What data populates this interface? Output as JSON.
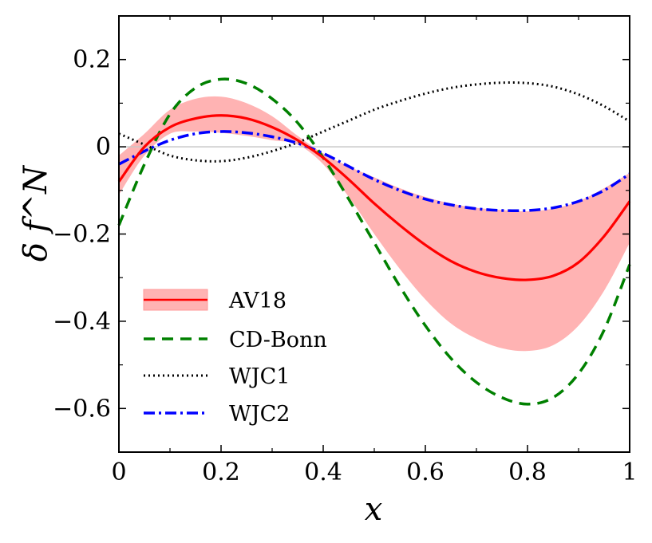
{
  "chart_data": {
    "type": "line",
    "title": "",
    "xlabel": "x",
    "ylabel": "δ f^N",
    "xlim": [
      0,
      1
    ],
    "ylim": [
      -0.7,
      0.3
    ],
    "x_ticks": [
      0,
      0.2,
      0.4,
      0.6,
      0.8,
      1
    ],
    "x_tick_labels": [
      "0",
      "0.2",
      "0.4",
      "0.6",
      "0.8",
      "1"
    ],
    "y_ticks": [
      0.2,
      0,
      -0.2,
      -0.4,
      -0.6
    ],
    "y_tick_labels": [
      "0.2",
      "0",
      "−0.2",
      "−0.4",
      "−0.6"
    ],
    "x": [
      0,
      0.05,
      0.1,
      0.15,
      0.2,
      0.25,
      0.3,
      0.35,
      0.4,
      0.45,
      0.5,
      0.55,
      0.6,
      0.65,
      0.7,
      0.75,
      0.8,
      0.85,
      0.9,
      0.95,
      1
    ],
    "legend_position": "lower-left",
    "series": [
      {
        "name": "AV18",
        "style": "solid",
        "color": "#ff0000",
        "band_color": "#ffb3b3",
        "values": [
          -0.08,
          0.0,
          0.045,
          0.065,
          0.072,
          0.065,
          0.045,
          0.015,
          -0.025,
          -0.075,
          -0.13,
          -0.18,
          -0.225,
          -0.262,
          -0.287,
          -0.301,
          -0.305,
          -0.296,
          -0.265,
          -0.205,
          -0.125
        ],
        "band_upper": [
          -0.02,
          0.03,
          0.085,
          0.11,
          0.115,
          0.1,
          0.07,
          0.025,
          -0.015,
          -0.045,
          -0.07,
          -0.095,
          -0.115,
          -0.13,
          -0.14,
          -0.145,
          -0.148,
          -0.142,
          -0.125,
          -0.095,
          -0.06
        ],
        "band_lower": [
          -0.11,
          -0.02,
          0.03,
          0.035,
          0.032,
          0.025,
          0.015,
          0.005,
          -0.04,
          -0.115,
          -0.2,
          -0.28,
          -0.35,
          -0.405,
          -0.44,
          -0.462,
          -0.468,
          -0.455,
          -0.41,
          -0.33,
          -0.22
        ]
      },
      {
        "name": "CD-Bonn",
        "style": "dashed",
        "color": "#008000",
        "values": [
          -0.18,
          -0.04,
          0.075,
          0.135,
          0.155,
          0.145,
          0.11,
          0.055,
          -0.025,
          -0.12,
          -0.22,
          -0.32,
          -0.41,
          -0.485,
          -0.54,
          -0.575,
          -0.59,
          -0.575,
          -0.52,
          -0.42,
          -0.27
        ]
      },
      {
        "name": "WJC1",
        "style": "dotted",
        "color": "#000000",
        "values": [
          0.03,
          0.005,
          -0.02,
          -0.031,
          -0.033,
          -0.025,
          -0.01,
          0.01,
          0.035,
          0.06,
          0.085,
          0.105,
          0.122,
          0.135,
          0.143,
          0.147,
          0.146,
          0.138,
          0.12,
          0.093,
          0.058
        ]
      },
      {
        "name": "WJC2",
        "style": "dashdot",
        "color": "#0000ff",
        "values": [
          -0.04,
          -0.01,
          0.015,
          0.03,
          0.035,
          0.032,
          0.023,
          0.008,
          -0.015,
          -0.045,
          -0.075,
          -0.1,
          -0.12,
          -0.133,
          -0.142,
          -0.146,
          -0.146,
          -0.14,
          -0.125,
          -0.1,
          -0.062
        ]
      }
    ]
  }
}
